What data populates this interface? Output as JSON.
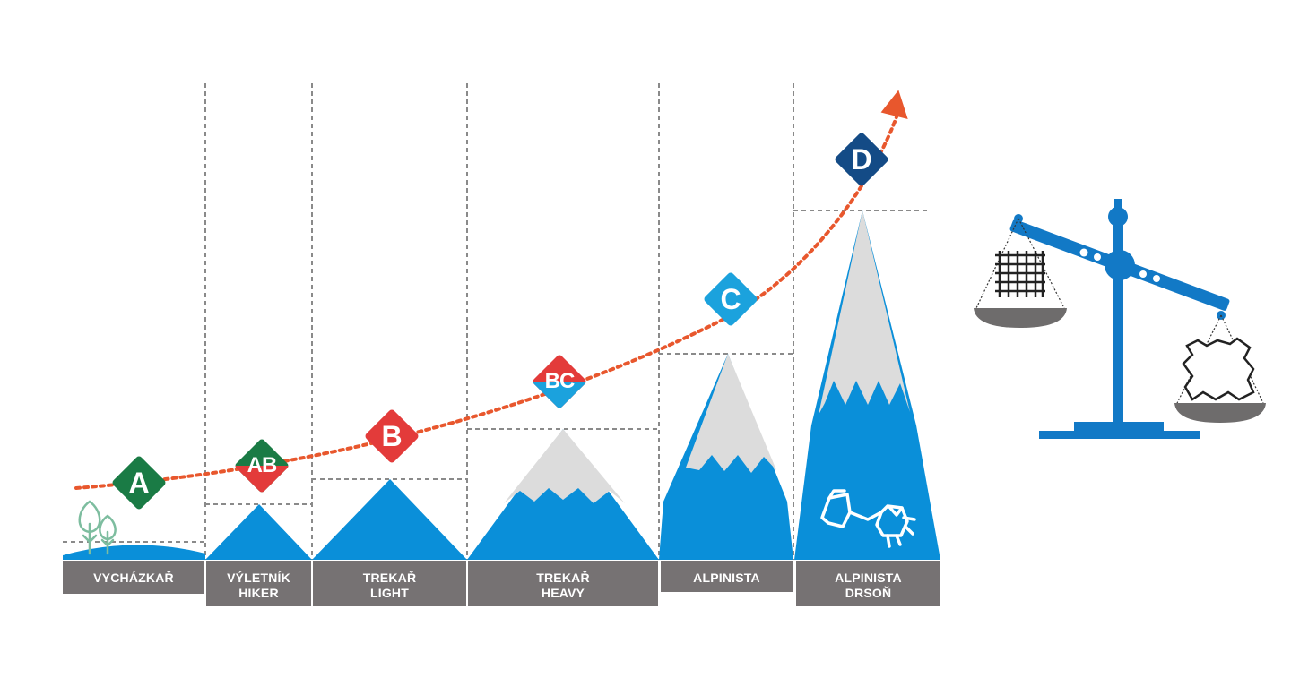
{
  "categories": [
    {
      "id": "vychazkar",
      "line1": "VYCHÁZKAŘ",
      "line2": "",
      "badge": "A"
    },
    {
      "id": "vyletnik-hiker",
      "line1": "VÝLETNÍK",
      "line2": "HIKER",
      "badge": "AB"
    },
    {
      "id": "trekar-light",
      "line1": "TREKAŘ",
      "line2": "LIGHT",
      "badge": "B"
    },
    {
      "id": "trekar-heavy",
      "line1": "TREKAŘ",
      "line2": "HEAVY",
      "badge": "BC"
    },
    {
      "id": "alpinista",
      "line1": "ALPINISTA",
      "line2": "",
      "badge": "C"
    },
    {
      "id": "alpinista-drson",
      "line1": "ALPINISTA",
      "line2": "DRSOŇ",
      "badge": "D"
    }
  ],
  "colors": {
    "mountain": "#0a8fd9",
    "snow": "#dcdcdc",
    "label_bar": "#767273",
    "guide_line": "#8a8a8a",
    "curve": "#e8572d",
    "badge_A": "#1a7b45",
    "badge_B": "#e33b3a",
    "badge_C": "#1ba2dd",
    "badge_D": "#144b86",
    "tree": "#7dbd9f",
    "scale": "#1279c6",
    "pan": "#6e6c6c"
  },
  "icons": [
    "tree-icon",
    "crampon-icon",
    "balance-scale-icon",
    "fabric-icon",
    "leather-icon",
    "arrow-head-icon"
  ]
}
